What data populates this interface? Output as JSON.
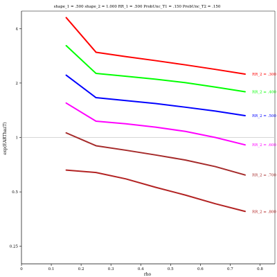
{
  "chart_data": {
    "type": "line",
    "title": "shape_1 = .500  shape_2 = 1.000  RR_1 = .500  ProbUnc_T1 = .150  ProbUnc_T2 = .150",
    "xlabel": "rho",
    "ylabel": "exp(EARThazT)",
    "x_ticks": [
      {
        "value": 0,
        "label": "0"
      },
      {
        "value": 0.1,
        "label": "0.1"
      },
      {
        "value": 0.2,
        "label": "0.2"
      },
      {
        "value": 0.3,
        "label": "0.3"
      },
      {
        "value": 0.4,
        "label": "0.4"
      },
      {
        "value": 0.5,
        "label": "0.5"
      },
      {
        "value": 0.6,
        "label": "0.6"
      },
      {
        "value": 0.7,
        "label": "0.7"
      },
      {
        "value": 0.8,
        "label": "0.8"
      }
    ],
    "y_ticks": [
      {
        "value": 0.25,
        "label": "0.25"
      },
      {
        "value": 0.5,
        "label": "0.5"
      },
      {
        "value": 1,
        "label": "1"
      },
      {
        "value": 2,
        "label": "2"
      },
      {
        "value": 4,
        "label": "4"
      }
    ],
    "xlim": [
      0,
      0.85
    ],
    "ylim": [
      0.2,
      5.0
    ],
    "y_scale": "log",
    "reference_line": 1,
    "x": [
      0.15,
      0.25,
      0.35,
      0.45,
      0.55,
      0.65,
      0.75
    ],
    "series": [
      {
        "name": "RR_2 = .300",
        "color": "#ff0000",
        "values": [
          4.6,
          2.96,
          2.8,
          2.66,
          2.52,
          2.38,
          2.24
        ]
      },
      {
        "name": "RR_2 = .400",
        "color": "#00ff00",
        "values": [
          3.22,
          2.26,
          2.18,
          2.1,
          2.01,
          1.9,
          1.79
        ]
      },
      {
        "name": "RR_2 = .500",
        "color": "#0000ff",
        "values": [
          2.21,
          1.66,
          1.6,
          1.54,
          1.47,
          1.4,
          1.32
        ]
      },
      {
        "name": "RR_2 = .600",
        "color": "#ff00ff",
        "values": [
          1.55,
          1.23,
          1.19,
          1.14,
          1.08,
          1.0,
          0.91
        ]
      },
      {
        "name": "RR_2 = .700",
        "color": "#a52a2a",
        "values": [
          1.06,
          0.9,
          0.85,
          0.8,
          0.75,
          0.69,
          0.62
        ]
      },
      {
        "name": "RR_2 = .800",
        "color": "#b22222",
        "values": [
          0.66,
          0.64,
          0.59,
          0.53,
          0.48,
          0.43,
          0.39
        ]
      }
    ]
  }
}
